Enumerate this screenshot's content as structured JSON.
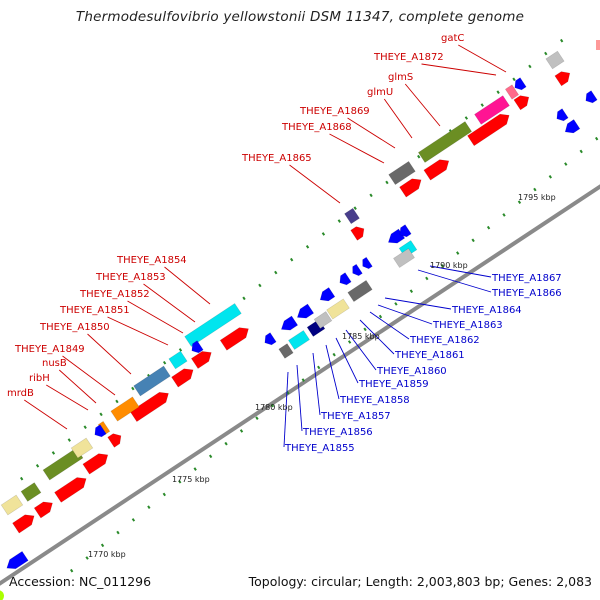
{
  "title": "Thermodesulfovibrio yellowstonii DSM 11347, complete genome",
  "footer": {
    "accession": "Accession: NC_011296",
    "topology": "Topology: circular; Length: 2,003,803 bp; Genes: 2,083"
  },
  "colors": {
    "backbone": "#8a8a8a",
    "forward_label": "#cc0000",
    "reverse_label": "#0000cc",
    "tick": "#2a8a2a"
  },
  "scale_labels": [
    {
      "text": "1770 kbp"
    },
    {
      "text": "1775 kbp"
    },
    {
      "text": "1780 kbp"
    },
    {
      "text": "1785 kbp"
    },
    {
      "text": "1790 kbp"
    },
    {
      "text": "1795 kbp"
    }
  ],
  "forward_labels": [
    {
      "text": "mrdB"
    },
    {
      "text": "ribH"
    },
    {
      "text": "nusB"
    },
    {
      "text": "THEYE_A1849"
    },
    {
      "text": "THEYE_A1850"
    },
    {
      "text": "THEYE_A1851"
    },
    {
      "text": "THEYE_A1852"
    },
    {
      "text": "THEYE_A1853"
    },
    {
      "text": "THEYE_A1854"
    },
    {
      "text": "THEYE_A1865"
    },
    {
      "text": "THEYE_A1868"
    },
    {
      "text": "THEYE_A1869"
    },
    {
      "text": "glmU"
    },
    {
      "text": "glmS"
    },
    {
      "text": "THEYE_A1872"
    },
    {
      "text": "gatC"
    }
  ],
  "reverse_labels": [
    {
      "text": "THEYE_A1855"
    },
    {
      "text": "THEYE_A1856"
    },
    {
      "text": "THEYE_A1857"
    },
    {
      "text": "THEYE_A1858"
    },
    {
      "text": "THEYE_A1859"
    },
    {
      "text": "THEYE_A1860"
    },
    {
      "text": "THEYE_A1861"
    },
    {
      "text": "THEYE_A1862"
    },
    {
      "text": "THEYE_A1863"
    },
    {
      "text": "THEYE_A1864"
    },
    {
      "text": "THEYE_A1866"
    },
    {
      "text": "THEYE_A1867"
    }
  ]
}
